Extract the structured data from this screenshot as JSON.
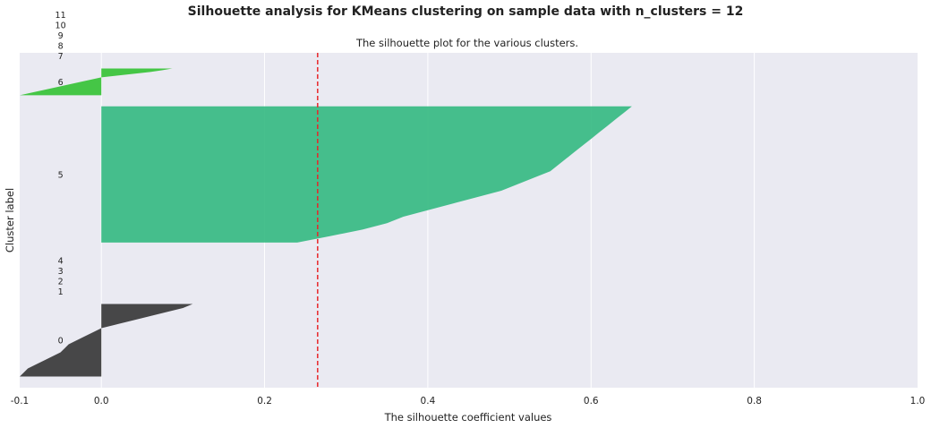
{
  "figure": {
    "suptitle": "Silhouette analysis for KMeans clustering on sample data with n_clusters = 12"
  },
  "chart_data": {
    "type": "area",
    "title": "The silhouette plot for the various clusters.",
    "xlabel": "The silhouette coefficient values",
    "ylabel": "Cluster label",
    "xlim": [
      -0.1,
      1.0
    ],
    "x_ticks": [
      "-0.1",
      "0.0",
      "0.2",
      "0.4",
      "0.6",
      "0.8",
      "1.0"
    ],
    "x_tick_values": [
      -0.1,
      0.0,
      0.2,
      0.4,
      0.6,
      0.8,
      1.0
    ],
    "grid": true,
    "average_silhouette_score": 0.265,
    "average_line_color": "#e8262a",
    "background_color": "#eaeaf2",
    "cluster_labels": [
      "0",
      "1",
      "2",
      "3",
      "4",
      "5",
      "6",
      "7",
      "8",
      "9",
      "10",
      "11"
    ],
    "clusters": [
      {
        "label": "0",
        "color": "#303030",
        "y_start": 10,
        "y_end": 75,
        "coefficients_sorted_ascending": [
          -0.1,
          -0.095,
          -0.09,
          -0.08,
          -0.07,
          -0.06,
          -0.05,
          -0.045,
          -0.04,
          -0.03,
          -0.02,
          -0.01,
          0.0,
          0.02,
          0.04,
          0.06,
          0.08,
          0.1,
          0.112
        ]
      },
      {
        "label": "1",
        "color": "#303030",
        "y_start": 75,
        "y_end": 75,
        "coefficients_sorted_ascending": []
      },
      {
        "label": "2",
        "color": "#303030",
        "y_start": 75,
        "y_end": 75,
        "coefficients_sorted_ascending": []
      },
      {
        "label": "3",
        "color": "#303030",
        "y_start": 75,
        "y_end": 75,
        "coefficients_sorted_ascending": []
      },
      {
        "label": "4",
        "color": "#303030",
        "y_start": 75,
        "y_end": 75,
        "coefficients_sorted_ascending": []
      },
      {
        "label": "5",
        "color": "#2db77d",
        "y_start": 130,
        "y_end": 252,
        "coefficients_sorted_ascending": [
          0.24,
          0.28,
          0.32,
          0.35,
          0.37,
          0.4,
          0.43,
          0.46,
          0.49,
          0.51,
          0.53,
          0.55,
          0.56,
          0.57,
          0.58,
          0.59,
          0.6,
          0.61,
          0.62,
          0.63,
          0.64,
          0.65
        ]
      },
      {
        "label": "6",
        "color": "#2ec02e",
        "y_start": 262,
        "y_end": 286,
        "coefficients_sorted_ascending": [
          -0.1,
          -0.09,
          -0.08,
          -0.07,
          -0.06,
          -0.05,
          -0.04,
          -0.03,
          -0.02,
          -0.01,
          0.0,
          0.02,
          0.04,
          0.06,
          0.075,
          0.087
        ]
      },
      {
        "label": "7",
        "color": "#2ec02e",
        "y_start": 286,
        "y_end": 286,
        "coefficients_sorted_ascending": []
      },
      {
        "label": "8",
        "color": "#2ec02e",
        "y_start": 286,
        "y_end": 286,
        "coefficients_sorted_ascending": []
      },
      {
        "label": "9",
        "color": "#2ec02e",
        "y_start": 286,
        "y_end": 286,
        "coefficients_sorted_ascending": []
      },
      {
        "label": "10",
        "color": "#2ec02e",
        "y_start": 286,
        "y_end": 286,
        "coefficients_sorted_ascending": []
      },
      {
        "label": "11",
        "color": "#2ec02e",
        "y_start": 286,
        "y_end": 286,
        "coefficients_sorted_ascending": []
      }
    ]
  }
}
